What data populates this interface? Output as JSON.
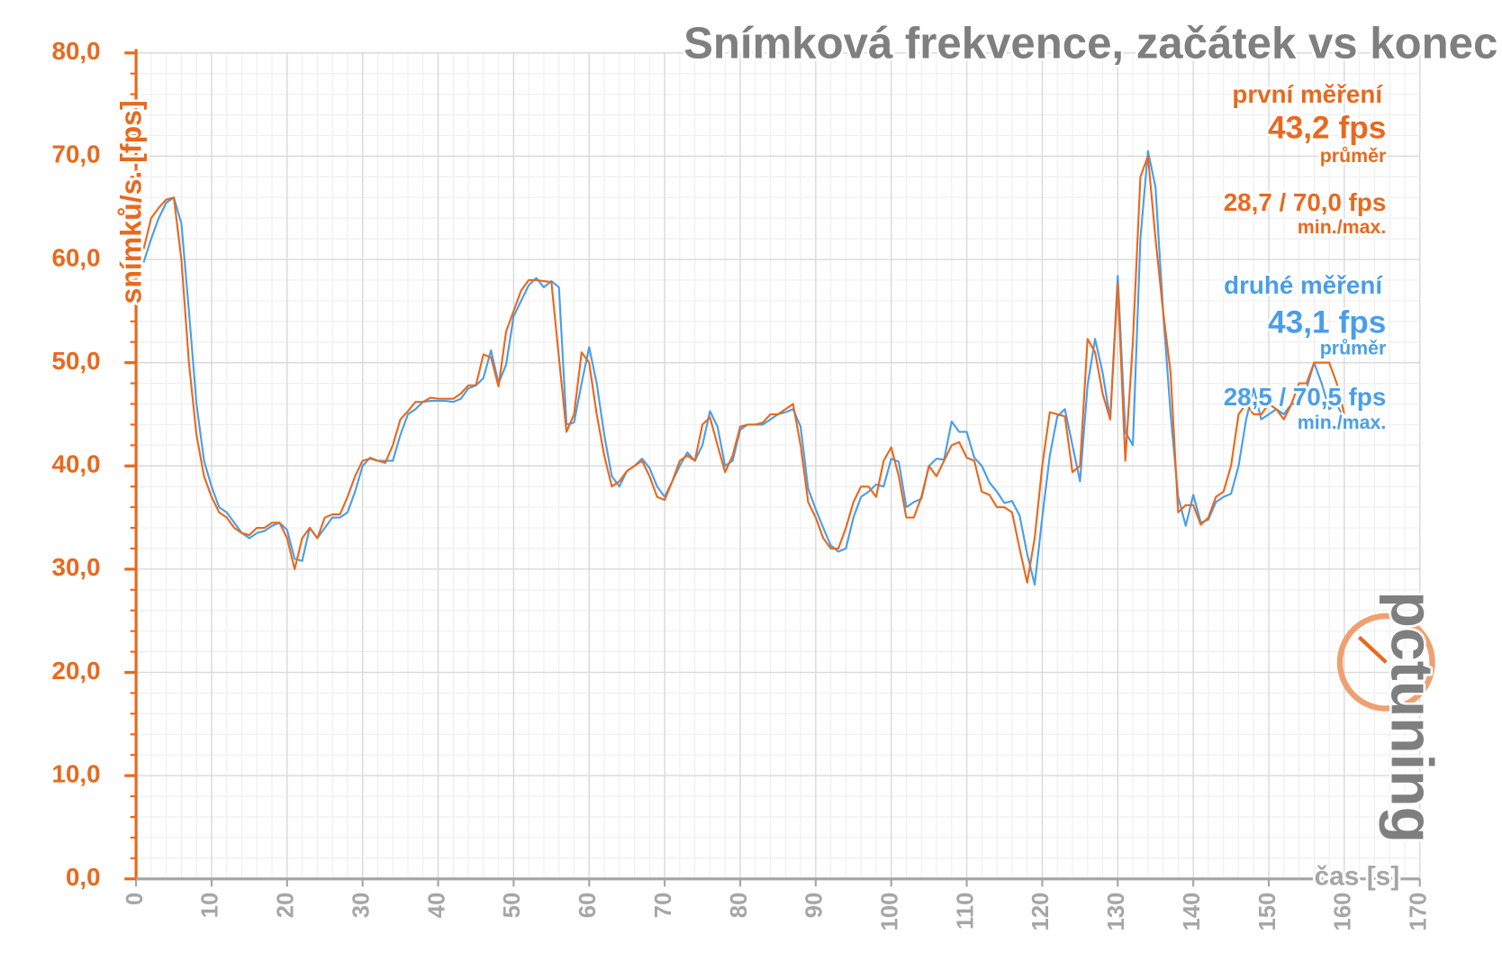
{
  "chart_data": {
    "type": "line",
    "title": "Snímková frekvence, začátek vs konec",
    "y_label": "snímků/s. [fps]",
    "x_label": "čas [s]",
    "logo": "pctuning",
    "x": [
      1,
      2,
      3,
      4,
      5,
      6,
      7,
      8,
      9,
      10,
      11,
      12,
      13,
      14,
      15,
      16,
      17,
      18,
      19,
      20,
      21,
      22,
      23,
      24,
      25,
      26,
      27,
      28,
      29,
      30,
      31,
      32,
      33,
      34,
      35,
      36,
      37,
      38,
      39,
      40,
      41,
      42,
      43,
      44,
      45,
      46,
      47,
      48,
      49,
      50,
      51,
      52,
      53,
      54,
      55,
      56,
      57,
      58,
      59,
      60,
      61,
      62,
      63,
      64,
      65,
      66,
      67,
      68,
      69,
      70,
      71,
      72,
      73,
      74,
      75,
      76,
      77,
      78,
      79,
      80,
      81,
      82,
      83,
      84,
      85,
      86,
      87,
      88,
      89,
      90,
      91,
      92,
      93,
      94,
      95,
      96,
      97,
      98,
      99,
      100,
      101,
      102,
      103,
      104,
      105,
      106,
      107,
      108,
      109,
      110,
      111,
      112,
      113,
      114,
      115,
      116,
      117,
      118,
      119,
      120,
      121,
      122,
      123,
      124,
      125,
      126,
      127,
      128,
      129,
      130,
      131,
      132,
      133,
      134,
      135,
      136,
      137,
      138,
      139,
      140,
      141,
      142,
      143,
      144,
      145,
      146,
      147,
      148,
      149,
      150,
      151,
      152,
      153,
      154,
      155,
      156,
      157,
      158,
      159,
      160
    ],
    "series": [
      {
        "name": "první měření",
        "color": "#e8691e",
        "mean": "43,2 fps",
        "mean_caption": "průměr",
        "minmax": "28,7 / 70,0 fps",
        "minmax_caption": "min./max.",
        "values": [
          61,
          64,
          65,
          65.8,
          66,
          60,
          50,
          43,
          39,
          37,
          35.5,
          35,
          34,
          33.5,
          33.3,
          34,
          34,
          34.5,
          34.5,
          33,
          30,
          33,
          34,
          33,
          35,
          35.3,
          35.3,
          37,
          39,
          40.5,
          40.7,
          40.5,
          40.3,
          42,
          44.5,
          45.3,
          46.2,
          46.2,
          46.6,
          46.5,
          46.5,
          46.5,
          47,
          47.8,
          47.8,
          50.8,
          50.5,
          47.7,
          53,
          55,
          57,
          58,
          58,
          57.9,
          57.8,
          50.5,
          43.3,
          45,
          51,
          50,
          45,
          41,
          38,
          38.5,
          39.5,
          40,
          40.5,
          39,
          37,
          36.7,
          38.5,
          40.5,
          41,
          40.5,
          44,
          44.7,
          42,
          39.4,
          41,
          43.8,
          44,
          44,
          44.2,
          45,
          45,
          45.5,
          46,
          42,
          36.5,
          35,
          33,
          32,
          32,
          34,
          36.5,
          38,
          38,
          37,
          40.5,
          41.8,
          39,
          35,
          35,
          37,
          40,
          39,
          40.5,
          42,
          42.3,
          40.8,
          40.5,
          37.5,
          37.2,
          36,
          36,
          35.5,
          32,
          28.7,
          33,
          40,
          45.2,
          45,
          44.8,
          39.4,
          40,
          52.3,
          51,
          47,
          44.5,
          57.7,
          40.5,
          52,
          68,
          70,
          62,
          55,
          49,
          35.5,
          36.2,
          36.2,
          34.3,
          35,
          37,
          37.5,
          40,
          45,
          46,
          45,
          45,
          46,
          45.5,
          44.5,
          46,
          48,
          48,
          50,
          50,
          50,
          48,
          45
        ]
      },
      {
        "name": "druhé měření",
        "color": "#4a9ee8",
        "mean": "43,1 fps",
        "mean_caption": "průměr",
        "minmax": "28,5 / 70,5 fps",
        "minmax_caption": "min./max.",
        "values": [
          59.7,
          62,
          64,
          65.5,
          66,
          63.5,
          55,
          46,
          40.5,
          38,
          36,
          35.5,
          34.5,
          33.5,
          33,
          33.5,
          33.7,
          34.2,
          34.5,
          33.8,
          31,
          30.8,
          34,
          33,
          34,
          35,
          35,
          35.5,
          37.5,
          40,
          40.8,
          40.5,
          40.5,
          40.5,
          43,
          45,
          45.5,
          46.2,
          46.3,
          46.3,
          46.3,
          46.2,
          46.5,
          47.5,
          47.8,
          48.5,
          51.2,
          48,
          49.8,
          54.5,
          56,
          57.5,
          58.2,
          57.3,
          57.9,
          57.3,
          44,
          44.2,
          48,
          51.5,
          48,
          43,
          39,
          38,
          39.5,
          40,
          40.7,
          39.8,
          38,
          37,
          38.5,
          40,
          41.3,
          40.5,
          42,
          45.3,
          43.8,
          40,
          40.5,
          43.5,
          44,
          44,
          44,
          44.5,
          45,
          45.2,
          45.5,
          43.8,
          37.8,
          35.8,
          34,
          32.3,
          31.7,
          32,
          35,
          37,
          37.5,
          38.2,
          38,
          40.7,
          40.4,
          36,
          36.5,
          36.8,
          40,
          40.7,
          40.6,
          44.3,
          43.3,
          43.3,
          40.8,
          40,
          38.4,
          37.5,
          36.4,
          36.6,
          35.2,
          31.5,
          28.5,
          35,
          41,
          44.8,
          45.5,
          42,
          38.5,
          47.8,
          52.3,
          49,
          44.5,
          58.4,
          43.3,
          42,
          62,
          70.5,
          67,
          55,
          45,
          37,
          34.2,
          37.2,
          34.5,
          34.8,
          36.5,
          37,
          37.3,
          40,
          44.5,
          47.5,
          44.5,
          45,
          45.5,
          45,
          46,
          46,
          47.5,
          50,
          48,
          45.5,
          46,
          44.5
        ]
      }
    ],
    "xlim": [
      0,
      170
    ],
    "xticks": [
      0,
      10,
      20,
      30,
      40,
      50,
      60,
      70,
      80,
      90,
      100,
      110,
      120,
      130,
      140,
      150,
      160,
      170
    ],
    "ylim": [
      0,
      80
    ],
    "yticks": [
      {
        "value": 0,
        "label": "0,0"
      },
      {
        "value": 10,
        "label": "10,0"
      },
      {
        "value": 20,
        "label": "20,0"
      },
      {
        "value": 30,
        "label": "30,0"
      },
      {
        "value": 40,
        "label": "40,0"
      },
      {
        "value": 50,
        "label": "50,0"
      },
      {
        "value": 60,
        "label": "60,0"
      },
      {
        "value": 70,
        "label": "70,0"
      },
      {
        "value": 80,
        "label": "80,0"
      }
    ],
    "grid": true,
    "minor_grid": {
      "x": 2,
      "y": 2
    },
    "axis_color": "#e8691e",
    "x_tick_color": "#a6a6a6",
    "title_color": "#7f7f7f"
  }
}
